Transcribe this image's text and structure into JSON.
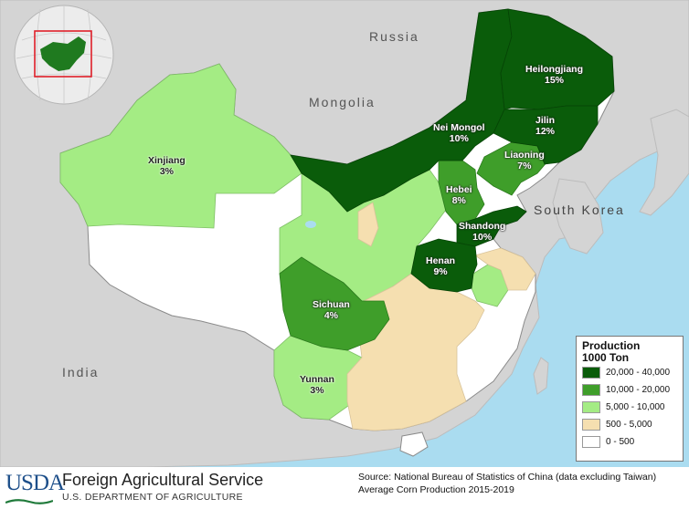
{
  "map": {
    "countries": {
      "russia": "Russia",
      "mongolia": "Mongolia",
      "south_korea": "South Korea",
      "india": "India"
    },
    "provinces": [
      {
        "id": "heilongjiang",
        "name": "Heilongjiang",
        "share": "15%",
        "class": "20,000 - 40,000"
      },
      {
        "id": "nei-mongol",
        "name": "Nei Mongol",
        "share": "10%",
        "class": "20,000 - 40,000"
      },
      {
        "id": "jilin",
        "name": "Jilin",
        "share": "12%",
        "class": "20,000 - 40,000"
      },
      {
        "id": "liaoning",
        "name": "Liaoning",
        "share": "7%",
        "class": "10,000 - 20,000"
      },
      {
        "id": "xinjiang",
        "name": "Xinjiang",
        "share": "3%",
        "class": "5,000 - 10,000"
      },
      {
        "id": "hebei",
        "name": "Hebei",
        "share": "8%",
        "class": "10,000 - 20,000"
      },
      {
        "id": "shandong",
        "name": "Shandong",
        "share": "10%",
        "class": "20,000 - 40,000"
      },
      {
        "id": "henan",
        "name": "Henan",
        "share": "9%",
        "class": "20,000 - 40,000"
      },
      {
        "id": "sichuan",
        "name": "Sichuan",
        "share": "4%",
        "class": "10,000 - 20,000"
      },
      {
        "id": "yunnan",
        "name": "Yunnan",
        "share": "3%",
        "class": "5,000 - 10,000"
      }
    ]
  },
  "legend": {
    "title_line1": "Production",
    "title_line2": "1000 Ton",
    "items": [
      {
        "label": "20,000 - 40,000",
        "color": "#0a5c0a"
      },
      {
        "label": "10,000 - 20,000",
        "color": "#3f9e2a"
      },
      {
        "label": "5,000 - 10,000",
        "color": "#a4ec84"
      },
      {
        "label": "500 - 5,000",
        "color": "#f5dfb0"
      },
      {
        "label": "0 - 500",
        "color": "#ffffff"
      }
    ]
  },
  "footer": {
    "usda": "USDA",
    "agency": "Foreign Agricultural Service",
    "department": "U.S. DEPARTMENT OF AGRICULTURE",
    "source_line1": "Source: National Bureau of Statistics of China (data excluding Taiwan)",
    "source_line2": "Average Corn Production 2015-2019"
  },
  "colors": {
    "sea": "#aadcf0",
    "land": "#d4d4d4",
    "inset_frame": "#e0202a"
  }
}
